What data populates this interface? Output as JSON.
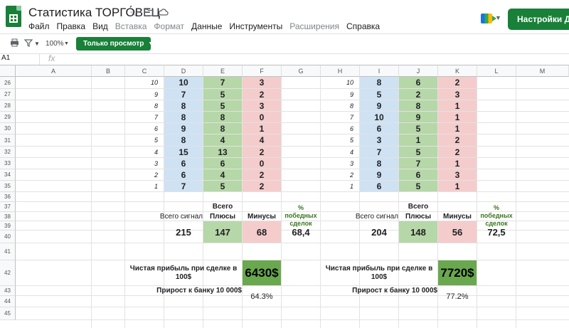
{
  "app": {
    "title": "Статистика ТОРГО́ВЕЦ",
    "menu": [
      "Файл",
      "Правка",
      "Вид",
      "Вставка",
      "Формат",
      "Данные",
      "Инструменты",
      "Расширения",
      "Справка"
    ],
    "menu_disabled": [
      false,
      false,
      false,
      true,
      true,
      false,
      false,
      true,
      false
    ],
    "share_label": "Настройки Доступа",
    "view_mode_label": "Только просмотр",
    "zoom": "100%",
    "name_box": "A1",
    "accent_color": "#188038"
  },
  "columns": [
    "A",
    "B",
    "C",
    "D",
    "E",
    "F",
    "G",
    "H",
    "I",
    "J",
    "K",
    "L",
    "M"
  ],
  "rows": [
    "26",
    "27",
    "28",
    "29",
    "30",
    "31",
    "32",
    "33",
    "34",
    "35",
    "36",
    "37",
    "38",
    "39",
    "40",
    "41",
    "42",
    "43",
    "44",
    "45"
  ],
  "left_table": {
    "index": [
      "10",
      "9",
      "8",
      "7",
      "6",
      "5",
      "4",
      "3",
      "2",
      "1"
    ],
    "total_signals": [
      "10",
      "7",
      "8",
      "8",
      "9",
      "8",
      "15",
      "6",
      "6",
      "7"
    ],
    "plus": [
      "7",
      "5",
      "5",
      "8",
      "8",
      "4",
      "13",
      "6",
      "4",
      "5"
    ],
    "minus": [
      "3",
      "2",
      "3",
      "0",
      "1",
      "4",
      "2",
      "0",
      "2",
      "2"
    ],
    "summary": {
      "header": "Всего",
      "col_signals": "Всего сигнал",
      "col_plus": "Плюсы",
      "col_minus": "Минусы",
      "col_win": "% победных сделок",
      "signals": "215",
      "plus": "147",
      "minus": "68",
      "win": "68,4",
      "profit_label": "Чистая прибыль при сделке в 100$",
      "profit": "6430$",
      "growth_label": "Прирост к банку 10 000$",
      "growth": "64.3%"
    }
  },
  "right_table": {
    "index": [
      "10",
      "9",
      "8",
      "7",
      "6",
      "5",
      "4",
      "3",
      "2",
      "1"
    ],
    "total_signals": [
      "8",
      "5",
      "9",
      "10",
      "6",
      "3",
      "7",
      "8",
      "9",
      "6"
    ],
    "plus": [
      "6",
      "2",
      "8",
      "9",
      "5",
      "1",
      "5",
      "7",
      "6",
      "5"
    ],
    "minus": [
      "2",
      "3",
      "1",
      "1",
      "1",
      "2",
      "2",
      "1",
      "3",
      "1"
    ],
    "summary": {
      "header": "Всего",
      "col_signals": "Всего сигнал",
      "col_plus": "Плюсы",
      "col_minus": "Минусы",
      "col_win": "% победных сделок",
      "signals": "204",
      "plus": "148",
      "minus": "56",
      "win": "72,5",
      "profit_label": "Чистая прибыль при сделке в 100$",
      "profit": "7720$",
      "growth_label": "Прирост к банку 10 000$",
      "growth": "77.2%"
    }
  }
}
